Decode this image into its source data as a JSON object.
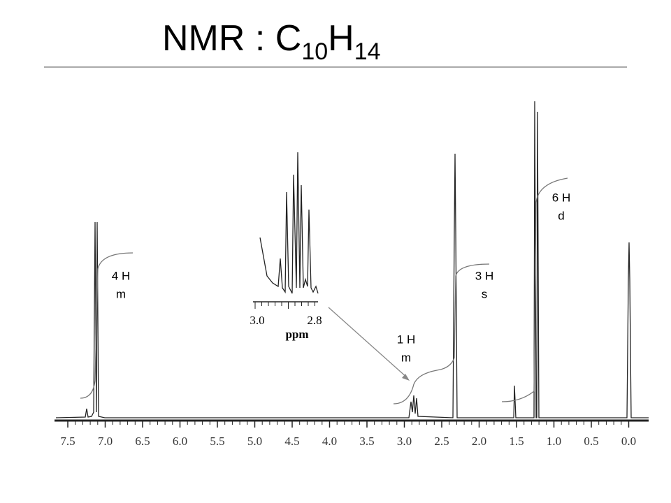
{
  "title": {
    "parts": [
      "NMR : C",
      "10",
      "H",
      "14"
    ]
  },
  "axis": {
    "ticks": [
      "7.5",
      "7.0",
      "6.5",
      "6.0",
      "5.5",
      "5.0",
      "4.5",
      "4.0",
      "3.5",
      "3.0",
      "2.5",
      "2.0",
      "1.5",
      "1.0",
      "0.5",
      "0.0"
    ]
  },
  "inset": {
    "ticks": [
      "3.0",
      "2.8"
    ],
    "label": "ppm"
  },
  "annotations": [
    {
      "count": "4 H",
      "mult": "m"
    },
    {
      "count": "1 H",
      "mult": "m"
    },
    {
      "count": "3 H",
      "mult": "s"
    },
    {
      "count": "6 H",
      "mult": "d"
    }
  ]
}
